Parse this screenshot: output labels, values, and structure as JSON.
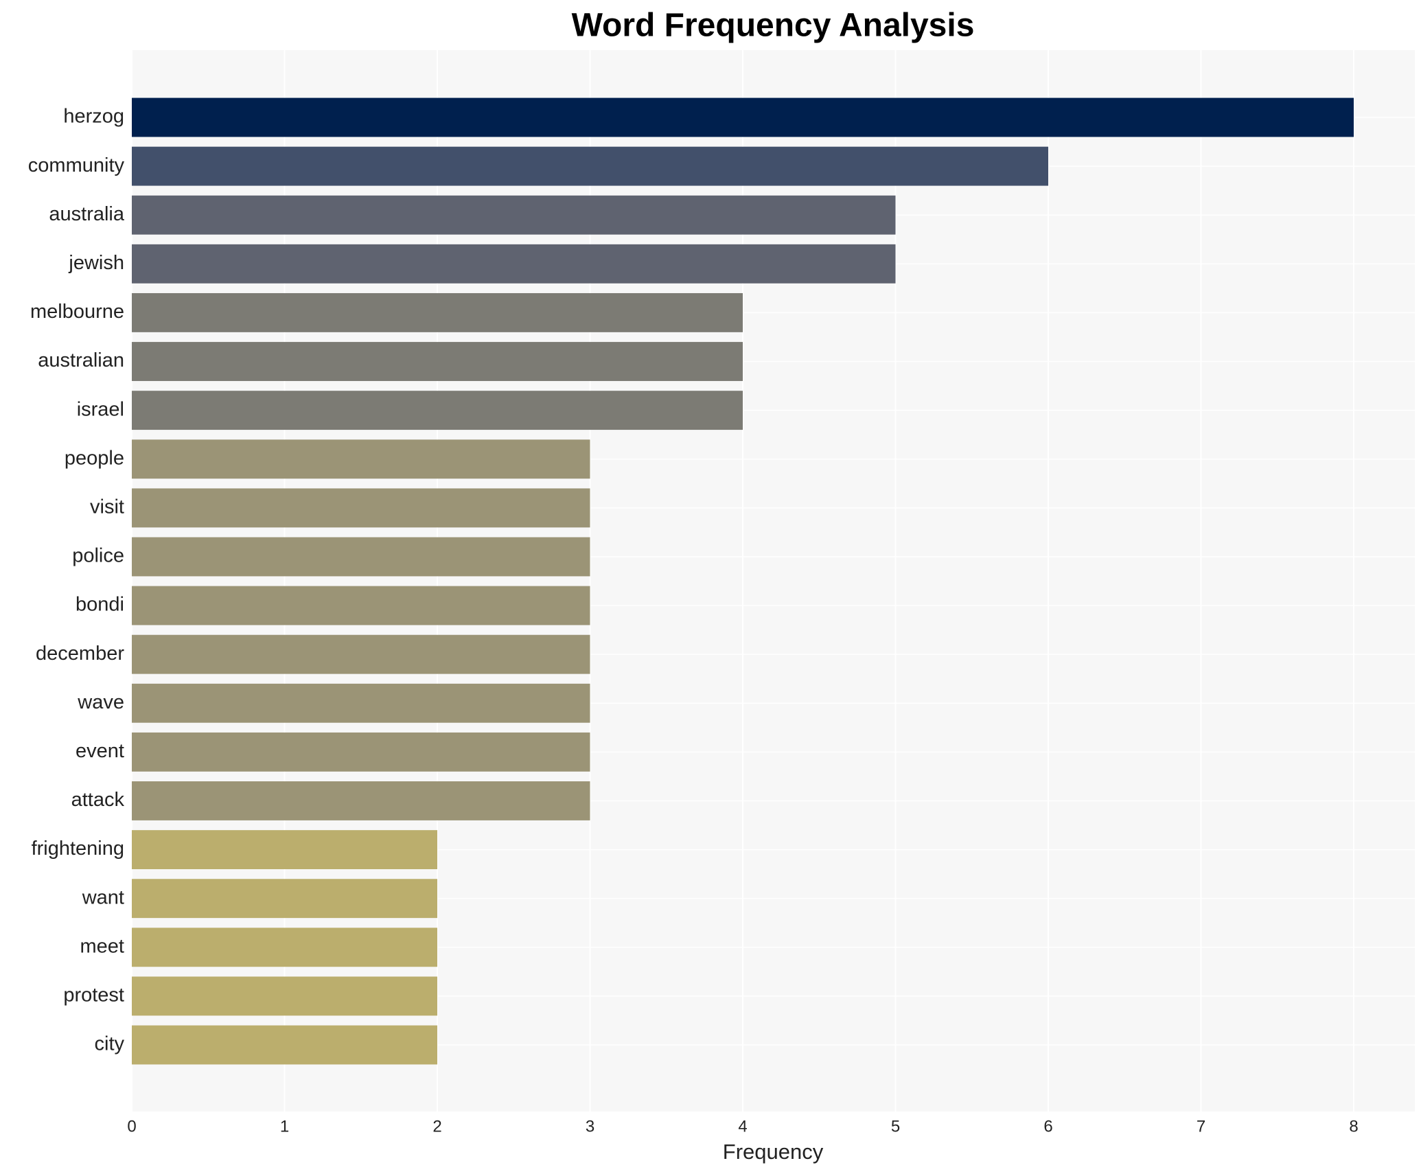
{
  "chart_data": {
    "type": "bar",
    "orientation": "horizontal",
    "title": "Word Frequency Analysis",
    "x_label": "Frequency",
    "categories": [
      "herzog",
      "community",
      "australia",
      "jewish",
      "melbourne",
      "australian",
      "israel",
      "people",
      "visit",
      "police",
      "bondi",
      "december",
      "wave",
      "event",
      "attack",
      "frightening",
      "want",
      "meet",
      "protest",
      "city"
    ],
    "values": [
      8,
      6,
      5,
      5,
      4,
      4,
      4,
      3,
      3,
      3,
      3,
      3,
      3,
      3,
      3,
      2,
      2,
      2,
      2,
      2
    ],
    "colors": [
      "#00204e",
      "#42506b",
      "#5f6370",
      "#5f6370",
      "#7c7b74",
      "#7c7b74",
      "#7c7b74",
      "#9b9476",
      "#9b9476",
      "#9b9476",
      "#9b9476",
      "#9b9476",
      "#9b9476",
      "#9b9476",
      "#9b9476",
      "#bbae6d",
      "#bbae6d",
      "#bbae6d",
      "#bbae6d",
      "#bbae6d"
    ],
    "xlim": [
      0,
      8.4
    ],
    "xticks": [
      0,
      1,
      2,
      3,
      4,
      5,
      6,
      7,
      8
    ],
    "grid": true
  }
}
